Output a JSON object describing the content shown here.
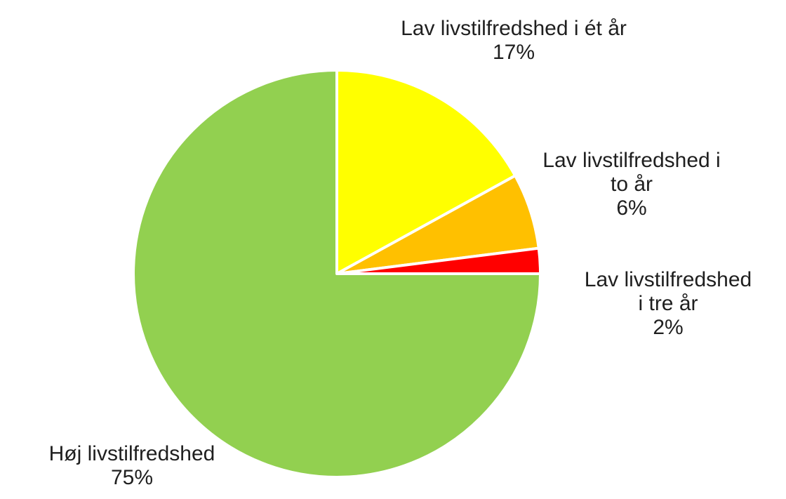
{
  "chart_data": {
    "type": "pie",
    "title": "",
    "slices": [
      {
        "category": "Lav livstilfredshed i ét år",
        "label_lines": [
          "Lav livstilfredshed i ét år"
        ],
        "value": 17,
        "value_label": "17%",
        "color": "#ffff00"
      },
      {
        "category": "Lav livstilfredshed i to år",
        "label_lines": [
          "Lav livstilfredshed i",
          "to år"
        ],
        "value": 6,
        "value_label": "6%",
        "color": "#ffc000"
      },
      {
        "category": "Lav livstilfredshed i tre år",
        "label_lines": [
          "Lav livstilfredshed",
          "i tre år"
        ],
        "value": 2,
        "value_label": "2%",
        "color": "#ff0000"
      },
      {
        "category": "Høj livstilfredshed",
        "label_lines": [
          "Høj livstilfredshed"
        ],
        "value": 75,
        "value_label": "75%",
        "color": "#92d050"
      }
    ]
  }
}
